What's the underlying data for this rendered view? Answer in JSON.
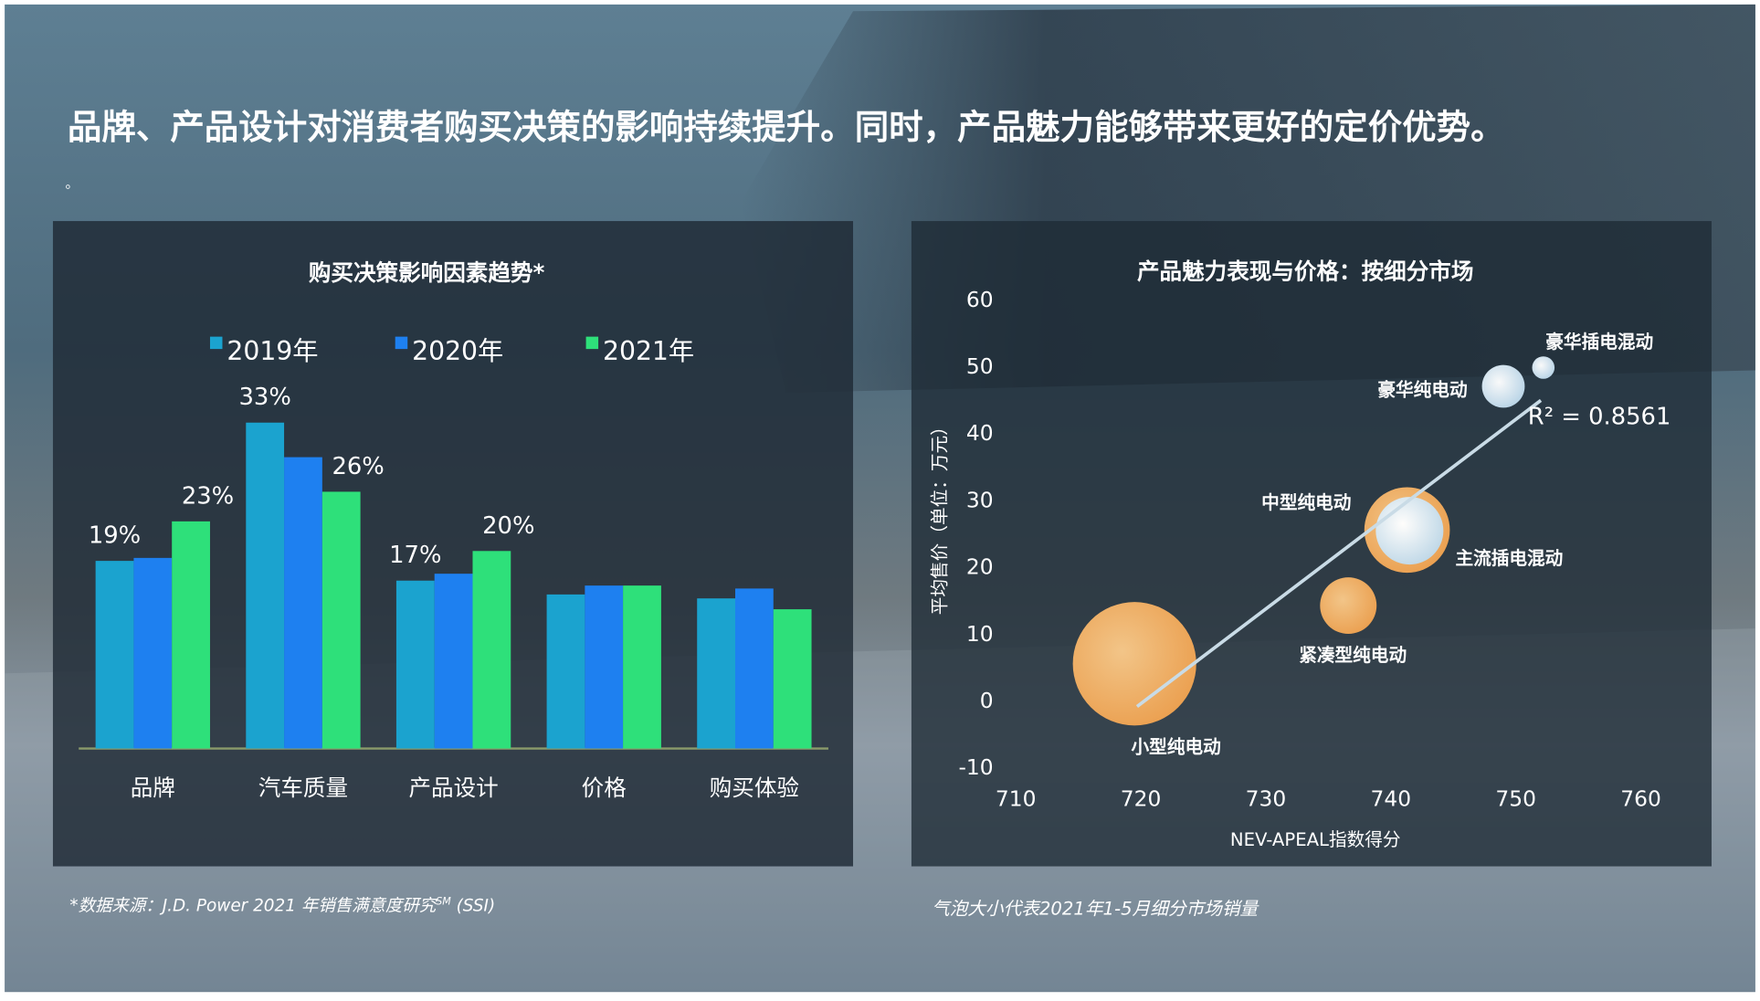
{
  "title": "品牌、产品设计对消费者购买决策的影响持续提升。同时，产品魅力能够带来更好的定价优势。",
  "title_tail": "。",
  "chart_data": [
    {
      "type": "bar",
      "title": "购买决策影响因素趋势*",
      "categories": [
        "品牌",
        "汽车质量",
        "产品设计",
        "价格",
        "购买体验"
      ],
      "series": [
        {
          "name": "2019年",
          "color": "#1ba3cf",
          "values": [
            19,
            33,
            17,
            15.6,
            15.2
          ],
          "value_labels": [
            "19%",
            "33%",
            "17%",
            null,
            null
          ]
        },
        {
          "name": "2020年",
          "color": "#1e80f0",
          "values": [
            19.3,
            29.5,
            17.7,
            16.5,
            16.2
          ],
          "value_labels": [
            null,
            null,
            null,
            null,
            null
          ]
        },
        {
          "name": "2021年",
          "color": "#2ee07a",
          "values": [
            23,
            26,
            20,
            16.5,
            14.1
          ],
          "value_labels": [
            "23%",
            "26%",
            "20%",
            null,
            null
          ]
        }
      ],
      "source": {
        "text": "*数据来源：J.D. Power 2021 年销售满意度研究",
        "sup": "SM",
        "tail": " (SSI)"
      }
    },
    {
      "type": "bubble",
      "title": "产品魅力表现与价格：按细分市场",
      "x_label": "NEV-APEAL指数得分",
      "y_label": "平均售价（单位：万元）",
      "xlim": [
        710,
        760
      ],
      "xticks": [
        710,
        720,
        730,
        740,
        750,
        760
      ],
      "ylim": [
        -10,
        60
      ],
      "yticks": [
        -10,
        0,
        10,
        20,
        30,
        40,
        50,
        60
      ],
      "points": [
        {
          "label": "小型纯电动",
          "x": 719.5,
          "y": 5.7,
          "size": 100,
          "color": "#f5b565"
        },
        {
          "label": "紧凑型纯电动",
          "x": 736.6,
          "y": 14.4,
          "size": 21,
          "color": "#f5b565"
        },
        {
          "label": "主流插电混动",
          "x": 741.3,
          "y": 25.7,
          "size": 48,
          "color": "#f5b565"
        },
        {
          "label": "中型纯电动",
          "x": 741.5,
          "y": 25.6,
          "size": 30,
          "color": "#d6e9f5"
        },
        {
          "label": "豪华纯电动",
          "x": 749,
          "y": 47.2,
          "size": 12,
          "color": "#d6e9f5"
        },
        {
          "label": "豪华插电混动",
          "x": 752.2,
          "y": 50,
          "size": 3.3,
          "color": "#d6e9f5"
        }
      ],
      "trendline": {
        "x": [
          719.7,
          752
        ],
        "y": [
          -0.7,
          45.1
        ],
        "label": "R² = 0.8561",
        "color": "#c9dbe6"
      },
      "note": "气泡大小代表2021年1-5月细分市场销量"
    }
  ]
}
